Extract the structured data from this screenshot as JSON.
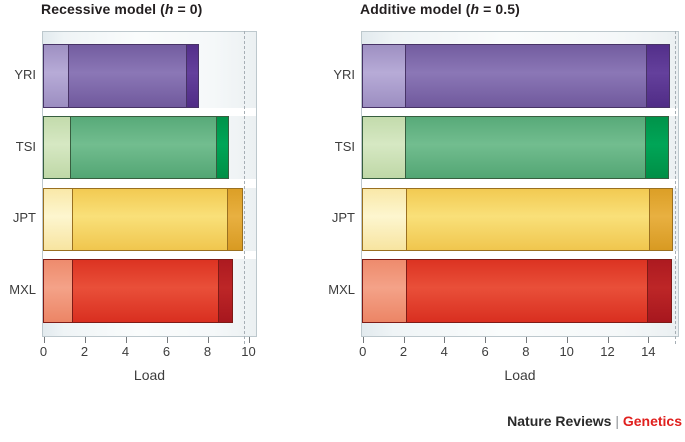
{
  "footer": {
    "brand": "Nature Reviews",
    "separator": " | ",
    "journal": "Genetics",
    "journal_color": "#e0201e"
  },
  "palette": {
    "YRI": {
      "light": [
        "#9e90c2",
        "#b7abd7",
        "#9c8ec1"
      ],
      "mid": [
        "#735da0",
        "#8b77b6",
        "#70599d"
      ],
      "dark": [
        "#532f8a",
        "#64409c",
        "#502c86"
      ],
      "border": "#473366"
    },
    "TSI": {
      "light": [
        "#c3dbac",
        "#d6e8c3",
        "#bfd8a7"
      ],
      "mid": [
        "#58aa79",
        "#72bd8f",
        "#53a674"
      ],
      "dark": [
        "#00934a",
        "#00a557",
        "#008f46"
      ],
      "border": "#375e3f"
    },
    "JPT": {
      "light": [
        "#f9e8a8",
        "#fdf6cf",
        "#f7e4a0"
      ],
      "mid": [
        "#f2ca52",
        "#f9e079",
        "#f0c64e"
      ],
      "dark": [
        "#dc9f26",
        "#e8b041",
        "#d89a22"
      ],
      "border": "#9a7020"
    },
    "MXL": {
      "light": [
        "#ee8b6d",
        "#f4a288",
        "#ec8566"
      ],
      "mid": [
        "#dc3322",
        "#e94f39",
        "#d92f20"
      ],
      "dark": [
        "#ad1a20",
        "#bd2627",
        "#a7171e"
      ],
      "border": "#7e1b16"
    }
  },
  "chart_data": [
    {
      "type": "bar",
      "orientation": "horizontal",
      "stacked": true,
      "title": {
        "prefix": "Recessive model (",
        "italic": "h",
        "suffix": " = 0)"
      },
      "xlabel": "Load",
      "categories": [
        "YRI",
        "TSI",
        "JPT",
        "MXL"
      ],
      "xticks": [
        0,
        2,
        4,
        6,
        8,
        10
      ],
      "xlim": [
        0,
        10.45
      ],
      "grid": false,
      "legend": "none",
      "dashed_reference_x": 9.8,
      "series": [
        {
          "name": "light-start-segment",
          "values": [
            1.2,
            1.3,
            1.4,
            1.4
          ]
        },
        {
          "name": "main-segment",
          "values": [
            5.8,
            7.15,
            7.6,
            7.15
          ]
        },
        {
          "name": "dark-end-segment",
          "values": [
            0.65,
            0.65,
            0.8,
            0.75
          ]
        }
      ],
      "stack_totals": [
        7.65,
        9.1,
        9.8,
        9.3
      ]
    },
    {
      "type": "bar",
      "orientation": "horizontal",
      "stacked": true,
      "title": {
        "prefix": "Additive model (",
        "italic": "h",
        "suffix": " = 0.5)"
      },
      "xlabel": "Load",
      "categories": [
        "YRI",
        "TSI",
        "JPT",
        "MXL"
      ],
      "xticks": [
        0,
        2,
        4,
        6,
        8,
        10,
        12,
        14
      ],
      "xlim": [
        0,
        15.55
      ],
      "grid": false,
      "legend": "none",
      "dashed_reference_x": 15.3,
      "series": [
        {
          "name": "light-start-segment",
          "values": [
            2.05,
            2.05,
            2.1,
            2.1
          ]
        },
        {
          "name": "main-segment",
          "values": [
            11.9,
            11.85,
            12.0,
            11.9
          ]
        },
        {
          "name": "dark-end-segment",
          "values": [
            1.15,
            1.15,
            1.15,
            1.2
          ]
        }
      ],
      "stack_totals": [
        15.1,
        15.05,
        15.25,
        15.2
      ]
    }
  ]
}
